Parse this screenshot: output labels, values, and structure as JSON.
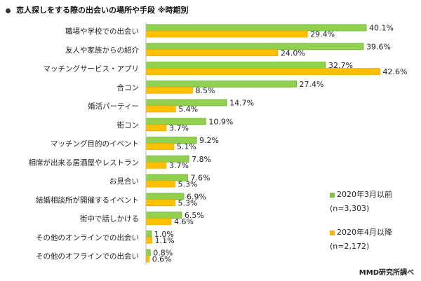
{
  "chart_data": {
    "type": "bar",
    "orientation": "horizontal",
    "title": "恋人探しをする際の出会いの場所や手段 ※時期別",
    "categories": [
      "職場や学校での出会い",
      "友人や家族からの紹介",
      "マッチングサービス・アプリ",
      "合コン",
      "婚活パーティー",
      "街コン",
      "マッチング目的のイベント",
      "相席が出来る居酒屋やレストラン",
      "お見合い",
      "結婚相談所が開催するイベント",
      "街中で話しかける",
      "その他のオンラインでの出会い",
      "その他のオフラインでの出会い"
    ],
    "series": [
      {
        "name": "2020年3月以前",
        "sample": "(n=3,303)",
        "color": "#92D050",
        "values": [
          40.1,
          39.6,
          32.7,
          27.4,
          14.7,
          10.9,
          9.2,
          7.8,
          7.6,
          6.9,
          6.5,
          1.0,
          0.8
        ]
      },
      {
        "name": "2020年4月以降",
        "sample": "(n=2,172)",
        "color": "#FFC000",
        "values": [
          29.4,
          24.0,
          42.6,
          8.5,
          5.4,
          3.7,
          5.1,
          3.7,
          5.3,
          5.3,
          4.6,
          1.1,
          0.6
        ]
      }
    ],
    "value_suffix": "%",
    "legend": "right",
    "grid": false
  },
  "source": "MMD研究所調べ"
}
